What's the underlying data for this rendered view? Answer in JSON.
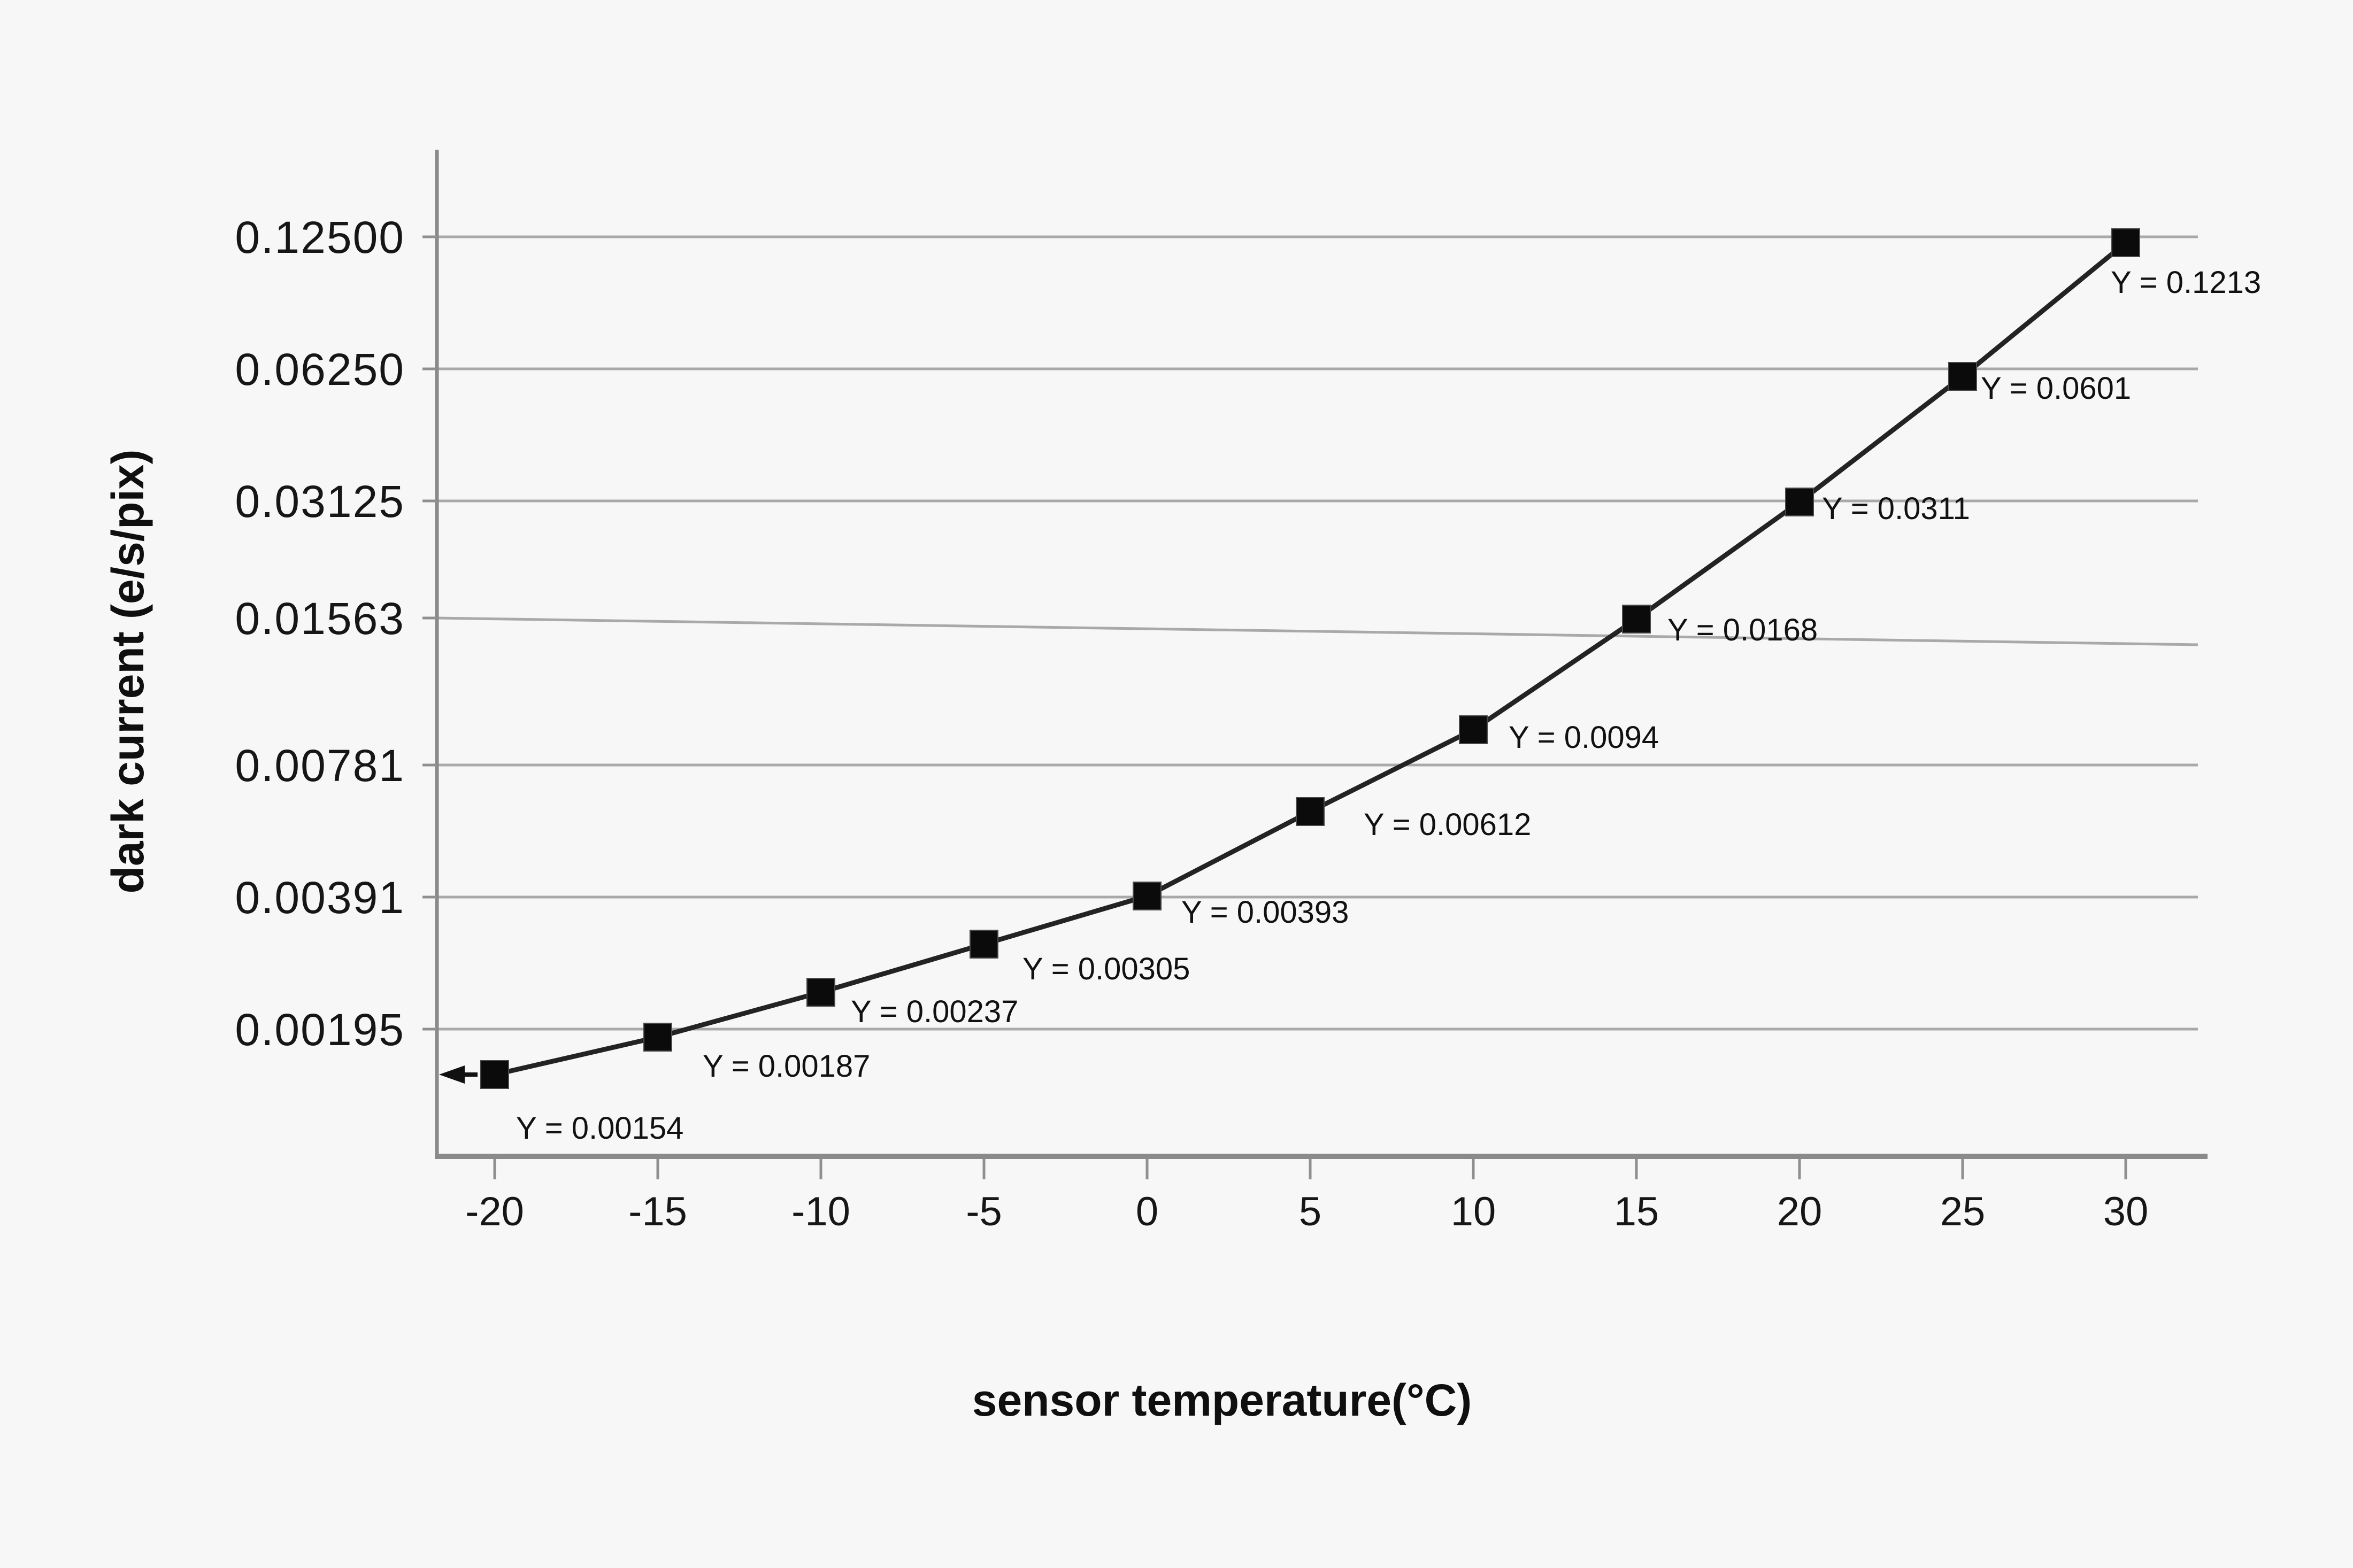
{
  "background": "#f7f7f7",
  "chart_data": {
    "type": "line",
    "title": "",
    "xlabel": "sensor temperature(°C)",
    "ylabel": "dark current (e/s/pix)",
    "x": [
      -20,
      -15,
      -10,
      -5,
      0,
      5,
      10,
      15,
      20,
      25,
      30
    ],
    "y": [
      0.00154,
      0.00187,
      0.00237,
      0.00305,
      0.00393,
      0.00612,
      0.0094,
      0.0168,
      0.0311,
      0.0601,
      0.1213
    ],
    "point_labels": [
      "Y = 0.00154",
      "Y = 0.00187",
      "Y = 0.00237",
      "Y = 0.00305",
      "Y = 0.00393",
      "Y = 0.00612",
      "Y = 0.0094",
      "Y = 0.0168",
      "Y = 0.0311",
      "Y = 0.0601",
      "Y = 0.1213"
    ],
    "x_tick_labels": [
      "-20",
      "-15",
      "-10",
      "-5",
      "0",
      "5",
      "10",
      "15",
      "20",
      "25",
      "30"
    ],
    "y_tick_labels": [
      "0.12500",
      "0.06250",
      "0.03125",
      "0.01563",
      "0.00781",
      "0.00391",
      "0.00195"
    ],
    "y_tick_values": [
      0.125,
      0.0625,
      0.03125,
      0.015625,
      0.0078125,
      0.00390625,
      0.001953125
    ],
    "y_scale": "log2",
    "xlim": [
      -22.5,
      32.5
    ],
    "grid": "horizontal",
    "legend": "none",
    "marker": "filled-square",
    "series_name": "dark current",
    "colors": {
      "line": "#232323",
      "marker": "#0b0b0b",
      "grid": "#a9a9a9",
      "axis": "#8a8a8a",
      "text": "#161616",
      "background": "#f7f7f7"
    },
    "annotations": [
      {
        "type": "left-arrow",
        "description": "small arrow pointing left at the y-axis, level with the first data point"
      }
    ]
  }
}
